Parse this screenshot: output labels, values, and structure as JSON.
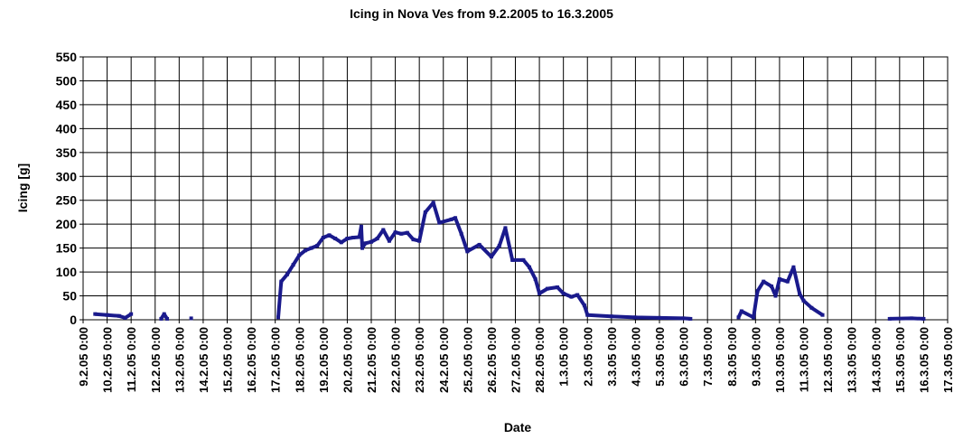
{
  "chart_data": {
    "type": "line",
    "title": "Icing in Nova Ves from 9.2.2005 to 16.3.2005",
    "xlabel": "Date",
    "ylabel": "Icing [g]",
    "color": "#1a1a8c",
    "grid": true,
    "ylim": [
      0,
      550
    ],
    "yticks": [
      0,
      50,
      100,
      150,
      200,
      250,
      300,
      350,
      400,
      450,
      500,
      550
    ],
    "xlim": [
      "9.2.05 0:00",
      "17.3.05 0:00"
    ],
    "xticks": [
      "9.2.05 0:00",
      "10.2.05 0:00",
      "11.2.05 0:00",
      "12.2.05 0:00",
      "13.2.05 0:00",
      "14.2.05 0:00",
      "15.2.05 0:00",
      "16.2.05 0:00",
      "17.2.05 0:00",
      "18.2.05 0:00",
      "19.2.05 0:00",
      "20.2.05 0:00",
      "21.2.05 0:00",
      "22.2.05 0:00",
      "23.2.05 0:00",
      "24.2.05 0:00",
      "25.2.05 0:00",
      "26.2.05 0:00",
      "27.2.05 0:00",
      "28.2.05 0:00",
      "1.3.05 0:00",
      "2.3.05 0:00",
      "3.3.05 0:00",
      "4.3.05 0:00",
      "5.3.05 0:00",
      "6.3.05 0:00",
      "7.3.05 0:00",
      "8.3.05 0:00",
      "9.3.05 0:00",
      "10.3.05 0:00",
      "11.3.05 0:00",
      "12.3.05 0:00",
      "13.3.05 0:00",
      "14.3.05 0:00",
      "15.3.05 0:00",
      "16.3.05 0:00",
      "17.3.05 0:00"
    ],
    "x": [
      "9.2.05 12:00",
      "10.2.05 0:00",
      "10.2.05 12:00",
      "10.2.05 18:00",
      "11.2.05 0:00",
      "11.2.05 12:00",
      "12.2.05 6:00",
      "12.2.05 9:00",
      "12.2.05 12:00",
      "13.2.05 0:00",
      "13.2.05 12:00",
      "14.2.05 0:00",
      "17.2.05 3:00",
      "17.2.05 6:00",
      "17.2.05 12:00",
      "17.2.05 18:00",
      "18.2.05 0:00",
      "18.2.05 6:00",
      "18.2.05 12:00",
      "18.2.05 18:00",
      "19.2.05 0:00",
      "19.2.05 6:00",
      "19.2.05 12:00",
      "19.2.05 18:00",
      "20.2.05 0:00",
      "20.2.05 6:00",
      "20.2.05 12:00",
      "20.2.05 14:00",
      "20.2.05 15:00",
      "20.2.05 18:00",
      "21.2.05 0:00",
      "21.2.05 6:00",
      "21.2.05 12:00",
      "21.2.05 18:00",
      "22.2.05 0:00",
      "22.2.05 6:00",
      "22.2.05 12:00",
      "22.2.05 18:00",
      "23.2.05 0:00",
      "23.2.05 6:00",
      "23.2.05 14:00",
      "23.2.05 20:00",
      "24.2.05 8:00",
      "24.2.05 12:00",
      "24.2.05 18:00",
      "25.2.05 0:00",
      "25.2.05 12:00",
      "26.2.05 0:00",
      "26.2.05 8:00",
      "26.2.05 14:00",
      "26.2.05 21:00",
      "27.2.05 8:00",
      "27.2.05 14:00",
      "27.2.05 20:00",
      "28.2.05 0:00",
      "28.2.05 8:00",
      "28.2.05 18:00",
      "1.3.05 0:00",
      "1.3.05 8:00",
      "1.3.05 14:00",
      "1.3.05 21:00",
      "2.3.05 0:00",
      "3.3.05 0:00",
      "4.3.05 0:00",
      "5.3.05 0:00",
      "6.3.05 0:00",
      "6.3.05 7:00",
      "7.3.05 0:00",
      "8.3.05 7:00",
      "8.3.05 10:00",
      "8.3.05 22:00",
      "9.3.05 2:00",
      "9.3.05 8:00",
      "9.3.05 16:00",
      "9.3.05 20:00",
      "10.3.05 0:00",
      "10.3.05 8:00",
      "10.3.05 14:00",
      "10.3.05 20:00",
      "11.3.05 0:00",
      "11.3.05 8:00",
      "11.3.05 19:00",
      "12.3.05 0:00",
      "14.3.05 14:00",
      "15.3.05 12:00",
      "16.3.05 0:00"
    ],
    "values": [
      12,
      10,
      8,
      4,
      12,
      null,
      2,
      12,
      2,
      null,
      3,
      null,
      5,
      80,
      95,
      115,
      135,
      145,
      150,
      155,
      172,
      177,
      170,
      162,
      170,
      172,
      173,
      195,
      150,
      160,
      163,
      170,
      188,
      165,
      183,
      180,
      182,
      168,
      165,
      225,
      245,
      203,
      210,
      213,
      180,
      143,
      157,
      132,
      155,
      192,
      125,
      125,
      110,
      85,
      55,
      65,
      68,
      55,
      48,
      52,
      30,
      10,
      7,
      5,
      4,
      3,
      2,
      null,
      5,
      18,
      5,
      60,
      80,
      70,
      50,
      85,
      80,
      110,
      55,
      40,
      25,
      10,
      null,
      2,
      3,
      2
    ]
  }
}
